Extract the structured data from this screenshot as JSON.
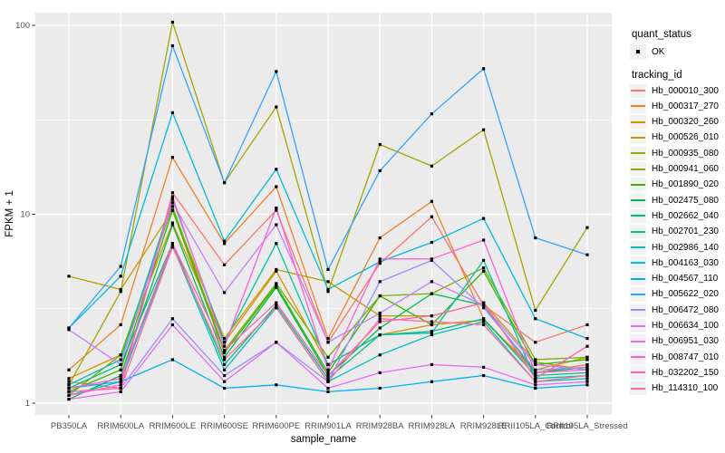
{
  "chart_data": {
    "type": "line",
    "title": "",
    "xlabel": "sample_name",
    "ylabel": "FPKM + 1",
    "y_scale": "log10",
    "y_ticks": [
      1,
      10,
      100
    ],
    "ylim": [
      1,
      117
    ],
    "grid": "on",
    "legend_position": "right",
    "panel_bg": "#EBEBEB",
    "grid_color": "#FFFFFF",
    "tick_color": "#333333",
    "tick_label_color": "#4D4D4D",
    "point_color": "#000000",
    "categories": [
      "PB350LA",
      "RRIM600LA",
      "RRIM600LE",
      "RRIM600SE",
      "RRIM600PE",
      "RRIM901LA",
      "RRIM928BA",
      "RRIM928LA",
      "RRIM928LE",
      "RRII105LA_Control",
      "RRII105LA_Stressed"
    ],
    "series": [
      {
        "name": "Hb_000010_300",
        "color": "#F8766D",
        "values": [
          1.3,
          1.2,
          13,
          5.4,
          10.5,
          2.1,
          5.5,
          9.7,
          3.3,
          2.1,
          2.6
        ]
      },
      {
        "name": "Hb_000317_270",
        "color": "#EA8331",
        "values": [
          1.5,
          2.6,
          20,
          7.0,
          14,
          2.2,
          7.5,
          11.7,
          2.8,
          1.45,
          1.6
        ]
      },
      {
        "name": "Hb_000320_260",
        "color": "#D89000",
        "values": [
          1.35,
          1.8,
          9.0,
          2.1,
          5.0,
          1.6,
          2.3,
          2.6,
          2.75,
          1.5,
          1.75
        ]
      },
      {
        "name": "Hb_000526_010",
        "color": "#C09B00",
        "values": [
          4.7,
          4.0,
          10.5,
          2.2,
          5.1,
          4.4,
          2.9,
          2.9,
          3.4,
          1.65,
          1.5
        ]
      },
      {
        "name": "Hb_000935_080",
        "color": "#A3A500",
        "values": [
          1.25,
          3.9,
          104,
          14.7,
          37,
          3.9,
          23.4,
          18,
          28,
          3.1,
          8.5
        ]
      },
      {
        "name": "Hb_000941_060",
        "color": "#7CAE00",
        "values": [
          1.1,
          1.8,
          11,
          1.9,
          4.3,
          1.75,
          3.7,
          3.8,
          5.2,
          1.7,
          1.75
        ]
      },
      {
        "name": "Hb_001890_020",
        "color": "#39B600",
        "values": [
          1.15,
          1.5,
          10.5,
          1.85,
          4.2,
          1.45,
          3.7,
          2.6,
          5.0,
          1.6,
          1.7
        ]
      },
      {
        "name": "Hb_002475_080",
        "color": "#00BB4E",
        "values": [
          1.05,
          1.4,
          8.8,
          1.75,
          4.1,
          1.4,
          2.5,
          3.8,
          3.3,
          1.45,
          1.55
        ]
      },
      {
        "name": "Hb_002662_040",
        "color": "#00BF7D",
        "values": [
          1.2,
          1.6,
          7.0,
          1.6,
          3.3,
          1.35,
          2.3,
          2.4,
          2.8,
          1.4,
          1.45
        ]
      },
      {
        "name": "Hb_002701_230",
        "color": "#00C1A3",
        "values": [
          1.25,
          1.7,
          12,
          2.1,
          7.0,
          1.6,
          2.3,
          2.35,
          5.7,
          1.35,
          1.4
        ]
      },
      {
        "name": "Hb_002986_140",
        "color": "#00BFC4",
        "values": [
          1.1,
          1.3,
          6.8,
          1.5,
          3.2,
          1.3,
          1.8,
          2.3,
          2.7,
          1.3,
          1.35
        ]
      },
      {
        "name": "Hb_004163_030",
        "color": "#00BAE0",
        "values": [
          2.5,
          4.7,
          34.5,
          7.2,
          17.3,
          4.0,
          5.6,
          7.1,
          9.5,
          2.8,
          2.2
        ]
      },
      {
        "name": "Hb_004567_110",
        "color": "#00B0F6",
        "values": [
          1.2,
          1.3,
          1.7,
          1.2,
          1.25,
          1.15,
          1.2,
          1.3,
          1.4,
          1.2,
          1.25
        ]
      },
      {
        "name": "Hb_005622_020",
        "color": "#35A2FF",
        "values": [
          2.5,
          5.3,
          78,
          14.7,
          57,
          5.1,
          17,
          34,
          59,
          7.5,
          6.1
        ]
      },
      {
        "name": "Hb_006472_080",
        "color": "#9590FF",
        "values": [
          1.15,
          1.2,
          2.8,
          1.4,
          2.1,
          1.3,
          4.4,
          5.7,
          3.2,
          1.5,
          1.55
        ]
      },
      {
        "name": "Hb_006634_100",
        "color": "#C77CFF",
        "values": [
          2.45,
          1.6,
          11.5,
          3.85,
          8.8,
          2.1,
          3.0,
          4.4,
          3.3,
          1.6,
          1.5
        ]
      },
      {
        "name": "Hb_006951_030",
        "color": "#E76BF3",
        "values": [
          1.05,
          1.15,
          2.6,
          1.3,
          2.1,
          1.2,
          1.45,
          1.6,
          1.55,
          1.25,
          1.3
        ]
      },
      {
        "name": "Hb_008747_010",
        "color": "#FA62DB",
        "values": [
          1.1,
          1.25,
          12.4,
          2.0,
          10.8,
          1.5,
          5.8,
          5.8,
          7.3,
          1.45,
          1.5
        ]
      },
      {
        "name": "Hb_032202_150",
        "color": "#FF62BC",
        "values": [
          1.2,
          1.35,
          7.0,
          1.9,
          3.4,
          1.4,
          2.7,
          2.9,
          3.4,
          1.35,
          2.0
        ]
      },
      {
        "name": "Hb_114310_100",
        "color": "#FF6A98",
        "values": [
          1.15,
          1.2,
          6.7,
          1.7,
          3.2,
          1.3,
          2.8,
          2.7,
          2.6,
          1.3,
          1.4
        ]
      }
    ],
    "legend": {
      "quant_title": "quant_status",
      "quant_items": [
        {
          "label": "OK"
        }
      ],
      "tracking_title": "tracking_id"
    }
  }
}
